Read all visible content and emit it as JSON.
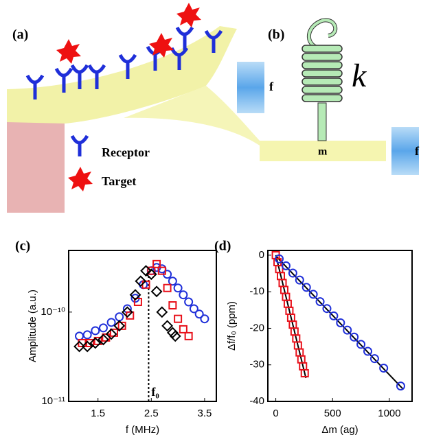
{
  "diagram": {
    "panel_a": "(a)",
    "panel_b": "(b)",
    "force_a": "f",
    "force_b": "f",
    "spring": "k",
    "mass": "m",
    "legend_receptor": "Receptor",
    "legend_target": "Target"
  },
  "chart_data": [
    {
      "type": "scatter",
      "panel": "(c)",
      "xlabel": "f (MHz)",
      "ylabel": "Amplitude (a.u.)",
      "log_y": true,
      "xlim": [
        0.95,
        3.72
      ],
      "xticks": [
        1.5,
        2.5,
        3.5
      ],
      "ylim": [
        1e-11,
        4.9e-10
      ],
      "yticks": [
        {
          "value": 1e-10,
          "label": "10⁻¹⁰"
        },
        {
          "value": 1e-11,
          "label": "10⁻¹¹"
        }
      ],
      "marker_line": {
        "x": 2.45,
        "top": 2.9e-10,
        "label": "f₀"
      },
      "series": [
        {
          "color": "#1f2fd9",
          "marker": "circle",
          "x": [
            1.15,
            1.3,
            1.45,
            1.6,
            1.75,
            1.9,
            2.05,
            2.2,
            2.35,
            2.5,
            2.6,
            2.7,
            2.8,
            2.9,
            3.0,
            3.1,
            3.2,
            3.3,
            3.4,
            3.5
          ],
          "values": [
            5.38e-11,
            5.57e-11,
            6.19e-11,
            6.65e-11,
            7.67e-11,
            8.84e-11,
            1.09e-10,
            1.43e-10,
            2.03e-10,
            2.9e-10,
            3.16e-10,
            3.05e-10,
            2.65e-10,
            2.22e-10,
            1.86e-10,
            1.56e-10,
            1.3e-10,
            1.09e-10,
            9.5e-11,
            8.4e-11
          ]
        },
        {
          "color": "#e8101a",
          "marker": "square",
          "x": [
            1.2,
            1.35,
            1.5,
            1.65,
            1.8,
            1.95,
            2.1,
            2.25,
            2.4,
            2.5,
            2.6,
            2.7,
            2.8,
            2.9,
            3.0,
            3.1,
            3.2
          ],
          "values": [
            4.5e-11,
            4.5e-11,
            4.75e-11,
            5.19e-11,
            5.88e-11,
            7.02e-11,
            9.16e-11,
            1.3e-10,
            2.03e-10,
            2.9e-10,
            3.45e-10,
            2.9e-10,
            1.86e-10,
            1.19e-10,
            8.4e-11,
            6.42e-11,
            5.38e-11
          ]
        },
        {
          "color": "#000000",
          "marker": "diamond",
          "x": [
            1.15,
            1.3,
            1.45,
            1.6,
            1.75,
            1.9,
            2.05,
            2.2,
            2.3,
            2.4,
            2.5,
            2.6,
            2.7,
            2.8,
            2.9,
            2.95
          ],
          "values": [
            4.12e-11,
            4.12e-11,
            4.5e-11,
            4.92e-11,
            5.67e-11,
            7.02e-11,
            1e-10,
            1.56e-10,
            2.22e-10,
            2.9e-10,
            2.65e-10,
            1.7e-10,
            1e-10,
            7.02e-11,
            5.88e-11,
            5.38e-11
          ]
        }
      ]
    },
    {
      "type": "scatter",
      "panel": "(d)",
      "xlabel": "Δm (ag)",
      "ylabel": "Δf/f₀ (ppm)",
      "log_y": false,
      "xlim": [
        -70,
        1200
      ],
      "xticks": [
        0,
        500,
        1000
      ],
      "ylim": [
        -40,
        1.3
      ],
      "yticks": [
        0,
        -10,
        -20,
        -30,
        -40
      ],
      "series": [
        {
          "color": "#e8101a",
          "marker": "square",
          "x": [
            0,
            15,
            30,
            45,
            60,
            75,
            90,
            105,
            120,
            135,
            150,
            165,
            180,
            195,
            210,
            225,
            240,
            255
          ],
          "values": [
            0,
            -1.9,
            -3.8,
            -5.7,
            -7.6,
            -9.5,
            -11.4,
            -13.3,
            -15.2,
            -17.1,
            -19,
            -20.9,
            -22.8,
            -24.7,
            -26.6,
            -28.5,
            -30.4,
            -32.3
          ]
        },
        {
          "color": "#1f2fd9",
          "marker": "circle",
          "x": [
            30,
            90,
            150,
            210,
            270,
            330,
            390,
            450,
            510,
            570,
            630,
            690,
            750,
            810,
            870,
            950,
            1100
          ],
          "values": [
            -1,
            -2.9,
            -4.9,
            -6.8,
            -8.8,
            -10.7,
            -12.7,
            -14.6,
            -16.6,
            -18.5,
            -20.5,
            -22.4,
            -24.4,
            -26.3,
            -28.3,
            -30.9,
            -35.8
          ]
        }
      ],
      "fit_lines": [
        {
          "color": "#000000",
          "x": [
            0,
            265
          ],
          "values": [
            0,
            -33.6
          ]
        },
        {
          "color": "#000000",
          "x": [
            0,
            1120
          ],
          "values": [
            -0.2,
            -36.6
          ]
        }
      ]
    }
  ]
}
